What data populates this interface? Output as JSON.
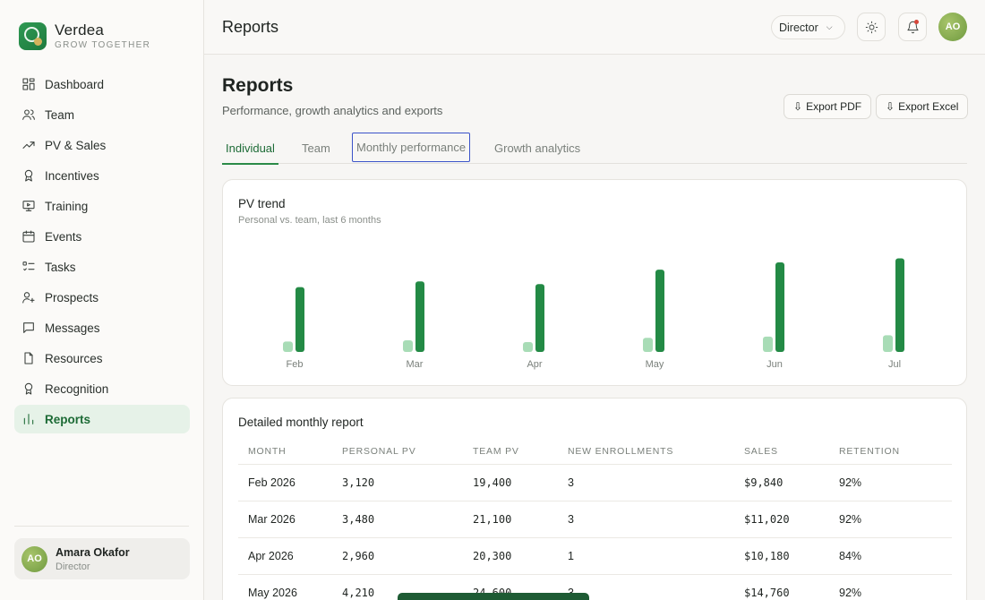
{
  "brand": {
    "name": "Verdea",
    "tagline": "GROW TOGETHER"
  },
  "sidebar": {
    "items": [
      {
        "label": "Dashboard",
        "icon": "layout-grid-icon",
        "active": false
      },
      {
        "label": "Team",
        "icon": "users-icon",
        "active": false
      },
      {
        "label": "PV & Sales",
        "icon": "trending-up-icon",
        "active": false
      },
      {
        "label": "Incentives",
        "icon": "award-icon",
        "active": false
      },
      {
        "label": "Training",
        "icon": "presentation-icon",
        "active": false
      },
      {
        "label": "Events",
        "icon": "calendar-icon",
        "active": false
      },
      {
        "label": "Tasks",
        "icon": "checklist-icon",
        "active": false
      },
      {
        "label": "Prospects",
        "icon": "user-plus-icon",
        "active": false
      },
      {
        "label": "Messages",
        "icon": "message-icon",
        "active": false
      },
      {
        "label": "Resources",
        "icon": "file-icon",
        "active": false
      },
      {
        "label": "Recognition",
        "icon": "medal-icon",
        "active": false
      },
      {
        "label": "Reports",
        "icon": "bar-chart-icon",
        "active": true
      }
    ],
    "user": {
      "initials": "AO",
      "name": "Amara Okafor",
      "role": "Director"
    }
  },
  "topbar": {
    "title": "Reports",
    "role_select": "Director",
    "avatar_initials": "AO"
  },
  "page": {
    "title": "Reports",
    "subtitle": "Performance, growth analytics and exports",
    "export_pdf": "Export PDF",
    "export_excel": "Export Excel",
    "tabs": [
      "Individual",
      "Team",
      "Monthly performance",
      "Growth analytics"
    ],
    "active_tab": "Individual"
  },
  "chart_card": {
    "title": "PV trend",
    "subtitle": "Personal vs. team, last 6 months"
  },
  "chart_data": {
    "type": "bar",
    "title": "PV trend",
    "subtitle": "Personal vs. team, last 6 months",
    "categories": [
      "Feb",
      "Mar",
      "Apr",
      "May",
      "Jun",
      "Jul"
    ],
    "series": [
      {
        "values": [
          3120,
          3480,
          2960,
          4210,
          4600,
          5000
        ],
        "color": "#a8dcb6"
      },
      {
        "values": [
          19400,
          21100,
          20300,
          24600,
          26800,
          28000
        ],
        "color": "#238a45"
      }
    ],
    "ylim": [
      0,
      30000
    ],
    "grid": false,
    "legend": "none"
  },
  "table": {
    "title": "Detailed monthly report",
    "columns": [
      "MONTH",
      "PERSONAL PV",
      "TEAM PV",
      "NEW ENROLLMENTS",
      "SALES",
      "RETENTION"
    ],
    "rows": [
      [
        "Feb 2026",
        "3,120",
        "19,400",
        "3",
        "$9,840",
        "92%"
      ],
      [
        "Mar 2026",
        "3,480",
        "21,100",
        "3",
        "$11,020",
        "92%"
      ],
      [
        "Apr 2026",
        "2,960",
        "20,300",
        "1",
        "$10,180",
        "84%"
      ],
      [
        "May 2026",
        "4,210",
        "24,600",
        "3",
        "$14,760",
        "92%"
      ]
    ]
  },
  "colors": {
    "accent": "#1d6b36",
    "active_bg": "#e6f2e8",
    "bar_team": "#238a45",
    "bar_personal": "#a8dcb6"
  }
}
